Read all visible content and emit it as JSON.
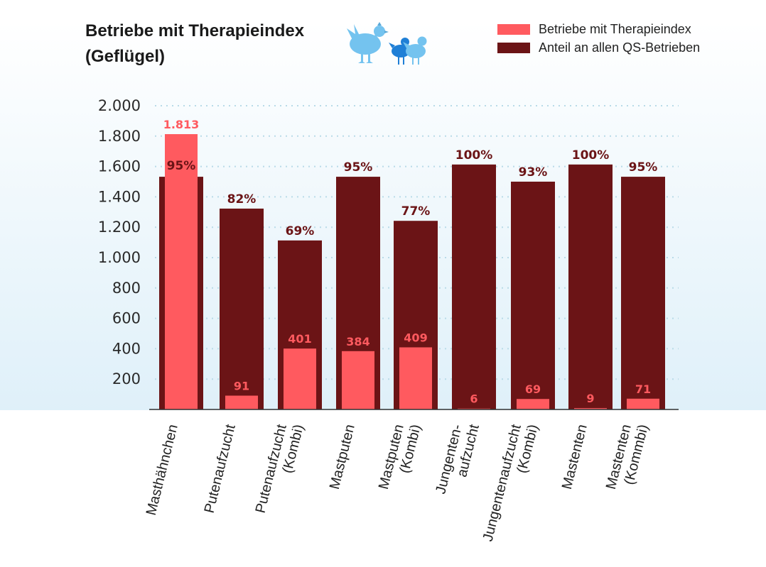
{
  "title_lines": [
    "Betriebe mit Therapieindex",
    "(Geflügel)"
  ],
  "legend": [
    {
      "label": "Betriebe mit Therapieindex",
      "color": "#ff5a5f"
    },
    {
      "label": "Anteil an allen QS-Betrieben",
      "color": "#6b1416"
    }
  ],
  "icons": {
    "birds": "chicken-and-turkey-icon"
  },
  "colors": {
    "count_bar": "#ff5a5f",
    "share_bar": "#6b1416",
    "background_top": "#ffffff",
    "background_bottom": "#dff0f9"
  },
  "chart_data": {
    "type": "bar",
    "categories": [
      [
        "Masthähnchen"
      ],
      [
        "Putenaufzucht"
      ],
      [
        "Putenaufzucht",
        "(Kombi)"
      ],
      [
        "Mastputen"
      ],
      [
        "Mastputen",
        "(Kombi)"
      ],
      [
        "Jungenten-",
        "aufzucht"
      ],
      [
        "Jungentenaufzucht",
        "(Kombi)"
      ],
      [
        "Mastenten"
      ],
      [
        "Mastenten",
        "(Kommbi)"
      ]
    ],
    "series": [
      {
        "name": "Anteil an allen QS-Betrieben",
        "values": [
          95,
          82,
          69,
          95,
          77,
          100,
          93,
          100,
          95
        ],
        "labels": [
          "95%",
          "82%",
          "69%",
          "95%",
          "77%",
          "100%",
          "93%",
          "100%",
          "95%"
        ]
      },
      {
        "name": "Betriebe mit Therapieindex",
        "values": [
          1813,
          91,
          401,
          384,
          409,
          6,
          69,
          9,
          71
        ],
        "labels": [
          "1.813",
          "91",
          "401",
          "384",
          "409",
          "6",
          "69",
          "9",
          "71"
        ]
      }
    ],
    "ylim": [
      0,
      2000
    ],
    "yticks": [
      200,
      400,
      600,
      800,
      1000,
      1200,
      1400,
      1600,
      1800,
      2000
    ],
    "ytick_labels": [
      "200",
      "400",
      "600",
      "800",
      "1.000",
      "1.200",
      "1.400",
      "1.600",
      "1.800",
      "2.000"
    ],
    "grid": true,
    "legend_position": "top-right"
  }
}
